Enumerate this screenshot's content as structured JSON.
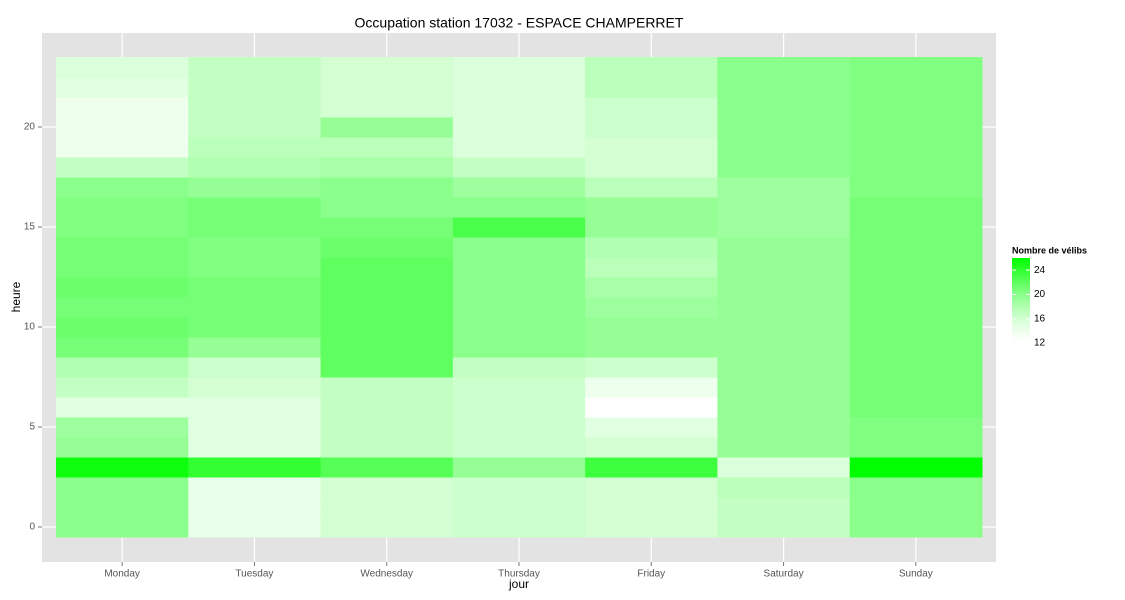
{
  "chart_data": {
    "type": "heatmap",
    "title": "Occupation station 17032 - ESPACE CHAMPERRET",
    "x_label": "jour",
    "y_label": "heure",
    "categories": [
      "Monday",
      "Tuesday",
      "Wednesday",
      "Thursday",
      "Friday",
      "Saturday",
      "Sunday"
    ],
    "y": [
      0,
      1,
      2,
      3,
      4,
      5,
      6,
      7,
      8,
      9,
      10,
      11,
      12,
      13,
      14,
      15,
      16,
      17,
      18,
      19,
      20,
      21,
      22,
      23
    ],
    "values": [
      [
        20,
        20,
        20,
        25.5,
        19.5,
        19,
        15,
        17,
        18,
        21,
        21.5,
        21,
        21.5,
        21,
        21,
        20.5,
        20.5,
        20,
        17,
        14,
        14,
        14,
        15,
        15.5
      ],
      [
        14.5,
        14.5,
        14.5,
        24,
        15,
        15,
        15,
        16,
        16.5,
        19.5,
        21,
        21,
        21,
        20.5,
        20.5,
        21,
        21,
        19.5,
        18,
        17.5,
        17,
        17,
        17,
        17
      ],
      [
        16,
        16,
        16,
        22.5,
        17,
        17,
        17,
        17,
        22,
        22,
        22,
        22,
        22,
        22,
        21.5,
        21,
        20,
        20,
        18.5,
        17.5,
        19.5,
        16,
        16,
        16
      ],
      [
        16.5,
        16.5,
        16.5,
        19.5,
        16.5,
        16.5,
        16.5,
        16.5,
        17,
        20,
        20,
        20,
        20,
        20,
        20,
        23,
        20,
        19,
        17,
        15.5,
        15.5,
        15.5,
        15.5,
        15.5
      ],
      [
        16,
        16,
        16,
        23.5,
        16,
        15,
        12,
        14,
        16.5,
        19.5,
        19.5,
        19,
        18.5,
        17.5,
        18,
        19.5,
        19.5,
        17.5,
        16,
        16,
        16.5,
        16.5,
        17.5,
        17.5
      ],
      [
        17,
        17,
        17.5,
        15.5,
        19.5,
        19.5,
        19.5,
        19.5,
        19.5,
        19.5,
        19.5,
        19.5,
        19.5,
        19.5,
        19.5,
        19,
        19,
        19,
        20,
        20,
        20,
        20,
        20,
        20
      ],
      [
        20,
        20,
        20,
        26,
        20.5,
        20.5,
        21,
        21,
        21,
        21,
        21,
        21,
        21,
        21,
        21,
        21,
        21,
        20.5,
        20.5,
        20.5,
        20.5,
        20.5,
        20.5,
        20.5
      ]
    ],
    "ylim": [
      -1.75,
      24.7
    ],
    "yticks": [
      0,
      5,
      10,
      15,
      20
    ],
    "grid": true,
    "legend_title": "Nombre de vélibs",
    "legend_position": "right",
    "colorlim": [
      12,
      26
    ],
    "low_color": "#ffffff",
    "high_color": "#00ff00",
    "legend_ticks": [
      12,
      16,
      20,
      24
    ]
  }
}
